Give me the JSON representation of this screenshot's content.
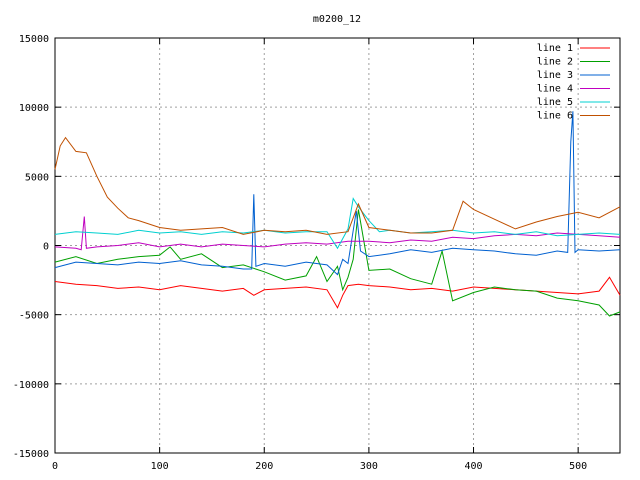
{
  "chart_data": {
    "type": "line",
    "title": "m0200_12",
    "xlabel": "",
    "ylabel": "",
    "xlim": [
      0,
      540
    ],
    "ylim": [
      -15000,
      15000
    ],
    "xticks": [
      0,
      100,
      200,
      300,
      400,
      500
    ],
    "yticks": [
      -15000,
      -10000,
      -5000,
      0,
      5000,
      10000,
      15000
    ],
    "grid": true,
    "legend_position": "top-right",
    "series": [
      {
        "name": "line 1",
        "color": "#ff0000",
        "x": [
          0,
          20,
          40,
          60,
          80,
          100,
          120,
          140,
          160,
          180,
          190,
          200,
          220,
          240,
          260,
          270,
          275,
          280,
          290,
          300,
          320,
          340,
          360,
          380,
          400,
          420,
          440,
          460,
          480,
          500,
          520,
          530,
          540
        ],
        "y": [
          -2600,
          -2800,
          -2900,
          -3100,
          -3000,
          -3200,
          -2900,
          -3100,
          -3300,
          -3100,
          -3600,
          -3200,
          -3100,
          -3000,
          -3200,
          -4500,
          -3600,
          -2900,
          -2800,
          -2900,
          -3000,
          -3200,
          -3100,
          -3300,
          -3000,
          -3100,
          -3200,
          -3300,
          -3400,
          -3500,
          -3300,
          -2300,
          -3600
        ]
      },
      {
        "name": "line 2",
        "color": "#00a000",
        "x": [
          0,
          20,
          40,
          60,
          80,
          100,
          110,
          120,
          140,
          160,
          180,
          200,
          220,
          240,
          250,
          260,
          270,
          275,
          280,
          285,
          290,
          300,
          320,
          340,
          360,
          370,
          380,
          400,
          420,
          440,
          460,
          480,
          500,
          520,
          530,
          540
        ],
        "y": [
          -1200,
          -800,
          -1300,
          -1000,
          -800,
          -700,
          -100,
          -1000,
          -600,
          -1600,
          -1400,
          -1900,
          -2500,
          -2200,
          -800,
          -2600,
          -1500,
          -3200,
          -2300,
          -1000,
          2600,
          -1800,
          -1700,
          -2400,
          -2800,
          -400,
          -4000,
          -3400,
          -3000,
          -3200,
          -3300,
          -3800,
          -4000,
          -4300,
          -5100,
          -4800
        ]
      },
      {
        "name": "line 3",
        "color": "#0060d0",
        "x": [
          0,
          20,
          40,
          60,
          80,
          100,
          120,
          140,
          160,
          180,
          188,
          190,
          192,
          200,
          220,
          240,
          260,
          270,
          275,
          280,
          288,
          292,
          300,
          320,
          340,
          360,
          380,
          400,
          420,
          440,
          460,
          480,
          490,
          493,
          495,
          497,
          500,
          520,
          540
        ],
        "y": [
          -1600,
          -1200,
          -1300,
          -1400,
          -1200,
          -1300,
          -1100,
          -1400,
          -1500,
          -1700,
          -1700,
          3700,
          -1500,
          -1300,
          -1500,
          -1200,
          -1400,
          -2100,
          -1000,
          -1300,
          2500,
          -400,
          -800,
          -600,
          -300,
          -500,
          -200,
          -300,
          -400,
          -600,
          -700,
          -400,
          -500,
          7500,
          9700,
          -500,
          -300,
          -400,
          -300
        ]
      },
      {
        "name": "line 4",
        "color": "#c000c0",
        "x": [
          0,
          20,
          25,
          28,
          30,
          40,
          60,
          80,
          100,
          120,
          140,
          160,
          180,
          200,
          220,
          240,
          260,
          280,
          300,
          320,
          340,
          360,
          380,
          400,
          420,
          440,
          460,
          480,
          500,
          520,
          540
        ],
        "y": [
          -100,
          -200,
          -300,
          2100,
          -200,
          -100,
          0,
          200,
          -100,
          100,
          -100,
          100,
          0,
          -100,
          100,
          200,
          100,
          300,
          300,
          200,
          400,
          300,
          600,
          500,
          700,
          800,
          700,
          900,
          800,
          700,
          600
        ]
      },
      {
        "name": "line 5",
        "color": "#00d0d0",
        "x": [
          0,
          20,
          40,
          60,
          80,
          100,
          120,
          140,
          160,
          180,
          200,
          220,
          240,
          260,
          270,
          280,
          285,
          290,
          300,
          310,
          320,
          340,
          360,
          380,
          400,
          420,
          440,
          460,
          480,
          500,
          520,
          540
        ],
        "y": [
          800,
          1000,
          900,
          800,
          1100,
          900,
          1000,
          800,
          1000,
          900,
          1100,
          900,
          1000,
          1000,
          -200,
          1200,
          3400,
          2800,
          1800,
          1000,
          1100,
          900,
          1000,
          1100,
          900,
          1000,
          800,
          1000,
          700,
          800,
          900,
          800
        ]
      },
      {
        "name": "line 6",
        "color": "#c05000",
        "x": [
          0,
          5,
          10,
          20,
          30,
          40,
          50,
          60,
          70,
          80,
          100,
          120,
          140,
          160,
          180,
          200,
          220,
          240,
          260,
          280,
          290,
          300,
          320,
          340,
          360,
          380,
          390,
          400,
          420,
          440,
          460,
          480,
          500,
          520,
          540
        ],
        "y": [
          5500,
          7200,
          7800,
          6800,
          6700,
          5000,
          3500,
          2700,
          2000,
          1800,
          1300,
          1100,
          1200,
          1300,
          800,
          1100,
          1000,
          1100,
          800,
          1000,
          3000,
          1300,
          1100,
          900,
          900,
          1100,
          3200,
          2600,
          1900,
          1200,
          1700,
          2100,
          2400,
          2000,
          2800
        ]
      }
    ]
  }
}
